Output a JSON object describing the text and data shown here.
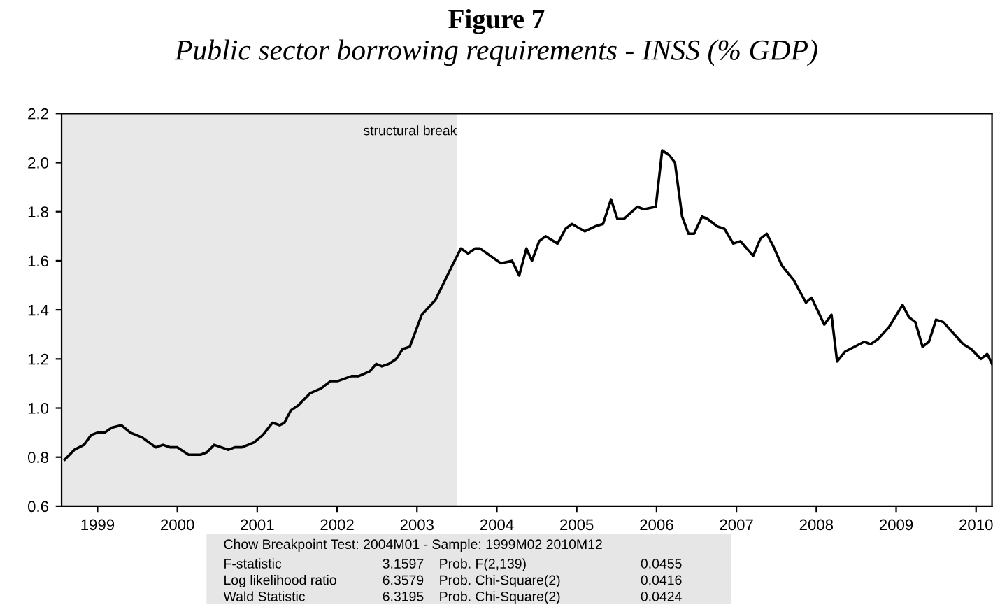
{
  "chart_data": {
    "type": "line",
    "title": "Figure 7",
    "subtitle": "Public sector borrowing requirements - INSS (% GDP)",
    "x": [
      1999.09,
      1999.21,
      1999.33,
      1999.42,
      1999.5,
      1999.59,
      1999.68,
      1999.8,
      1999.91,
      2000.06,
      2000.23,
      2000.32,
      2000.41,
      2000.5,
      2000.64,
      2000.79,
      2000.87,
      2000.96,
      2001.14,
      2001.22,
      2001.31,
      2001.46,
      2001.57,
      2001.69,
      2001.78,
      2001.84,
      2001.92,
      2002.01,
      2002.16,
      2002.3,
      2002.42,
      2002.51,
      2002.68,
      2002.77,
      2002.91,
      2002.99,
      2003.06,
      2003.15,
      2003.24,
      2003.32,
      2003.41,
      2003.56,
      2003.73,
      2003.82,
      2003.94,
      2004.05,
      2004.14,
      2004.23,
      2004.29,
      2004.55,
      2004.69,
      2004.78,
      2004.87,
      2004.94,
      2005.03,
      2005.11,
      2005.26,
      2005.36,
      2005.44,
      2005.6,
      2005.73,
      2005.83,
      2005.93,
      2006.01,
      2006.09,
      2006.26,
      2006.34,
      2006.49,
      2006.57,
      2006.66,
      2006.73,
      2006.82,
      2006.9,
      2006.97,
      2007.07,
      2007.14,
      2007.26,
      2007.35,
      2007.46,
      2007.55,
      2007.71,
      2007.8,
      2007.88,
      2007.96,
      2008.07,
      2008.22,
      2008.37,
      2008.44,
      2008.6,
      2008.69,
      2008.76,
      2008.86,
      2008.98,
      2009.1,
      2009.18,
      2009.27,
      2009.41,
      2009.58,
      2009.66,
      2009.74,
      2009.83,
      2009.91,
      2010.0,
      2010.09,
      2010.34,
      2010.44,
      2010.56,
      2010.64,
      2010.7
    ],
    "series": [
      {
        "color": "#000000",
        "values": [
          0.79,
          0.83,
          0.85,
          0.89,
          0.9,
          0.9,
          0.92,
          0.93,
          0.9,
          0.88,
          0.84,
          0.85,
          0.84,
          0.84,
          0.81,
          0.81,
          0.82,
          0.85,
          0.83,
          0.84,
          0.84,
          0.86,
          0.89,
          0.94,
          0.93,
          0.94,
          0.99,
          1.01,
          1.06,
          1.08,
          1.11,
          1.11,
          1.13,
          1.13,
          1.15,
          1.18,
          1.17,
          1.18,
          1.2,
          1.24,
          1.25,
          1.38,
          1.44,
          1.5,
          1.58,
          1.65,
          1.63,
          1.65,
          1.65,
          1.59,
          1.6,
          1.54,
          1.65,
          1.6,
          1.68,
          1.7,
          1.67,
          1.73,
          1.75,
          1.72,
          1.74,
          1.75,
          1.85,
          1.77,
          1.77,
          1.82,
          1.81,
          1.82,
          2.05,
          2.03,
          2.0,
          1.78,
          1.71,
          1.71,
          1.78,
          1.77,
          1.74,
          1.73,
          1.67,
          1.68,
          1.62,
          1.69,
          1.71,
          1.66,
          1.58,
          1.52,
          1.43,
          1.45,
          1.34,
          1.38,
          1.19,
          1.23,
          1.25,
          1.27,
          1.26,
          1.28,
          1.33,
          1.42,
          1.37,
          1.35,
          1.25,
          1.27,
          1.36,
          1.35,
          1.26,
          1.24,
          1.2,
          1.22,
          1.18
        ]
      }
    ],
    "xlim": [
      1999.05,
      2010.7
    ],
    "ylim": [
      0.6,
      2.2
    ],
    "xticks": [
      {
        "value": 1999.5,
        "label": "1999"
      },
      {
        "value": 2000.5,
        "label": "2000"
      },
      {
        "value": 2001.5,
        "label": "2001"
      },
      {
        "value": 2002.5,
        "label": "2002"
      },
      {
        "value": 2003.5,
        "label": "2003"
      },
      {
        "value": 2004.5,
        "label": "2004"
      },
      {
        "value": 2005.5,
        "label": "2005"
      },
      {
        "value": 2006.5,
        "label": "2006"
      },
      {
        "value": 2007.5,
        "label": "2007"
      },
      {
        "value": 2008.5,
        "label": "2008"
      },
      {
        "value": 2009.5,
        "label": "2009"
      },
      {
        "value": 2010.5,
        "label": "2010"
      }
    ],
    "yticks": [
      0.6,
      0.8,
      {
        "value": 1.0,
        "label": "1.0"
      },
      1.2,
      1.4,
      1.6,
      1.8,
      {
        "value": 2.0,
        "label": "2.0"
      },
      2.2
    ],
    "bands": [
      {
        "axis": "x",
        "from": 1999.05,
        "to": 2004.0,
        "label": "structural break",
        "color": "#e8e8e8"
      }
    ],
    "grid": false,
    "legend": false,
    "line_style": "solid",
    "marker": "none",
    "annotations": [
      "Chow Breakpoint Test: 2004M01 - Sample: 1999M02 2010M12",
      "F-statistic",
      "3.1597",
      "Prob. F(2,139)",
      "0.0455",
      "Log likelihood ratio",
      "6.3579",
      "Prob. Chi-Square(2)",
      "0.0416",
      "Wald Statistic",
      "6.3195",
      "Prob. Chi-Square(2)",
      "0.0424"
    ]
  }
}
